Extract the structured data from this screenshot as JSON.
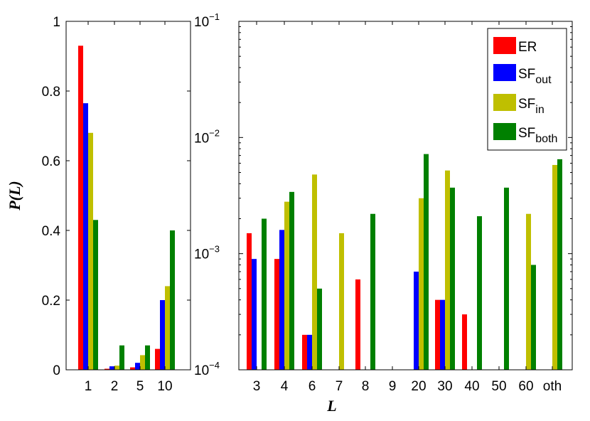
{
  "chart_data": [
    {
      "type": "bar",
      "panel": "left",
      "scale": "linear",
      "ylabel": "P(L)",
      "ylim": [
        0,
        1
      ],
      "yticks": [
        0,
        0.2,
        0.4,
        0.6,
        0.8,
        1
      ],
      "ytick_labels": [
        "0",
        "0.2",
        "0.4",
        "0.6",
        "0.8",
        "1"
      ],
      "categories": [
        "1",
        "2",
        "5",
        "10"
      ],
      "series": [
        {
          "name": "ER",
          "color": "#ff0000",
          "values": [
            0.93,
            0.003,
            0.007,
            0.06
          ]
        },
        {
          "name": "SF_out",
          "color": "#0000ff",
          "values": [
            0.765,
            0.01,
            0.02,
            0.2
          ]
        },
        {
          "name": "SF_in",
          "color": "#bfbf00",
          "values": [
            0.68,
            0.012,
            0.042,
            0.24
          ]
        },
        {
          "name": "SF_both",
          "color": "#008000",
          "values": [
            0.43,
            0.07,
            0.07,
            0.4
          ]
        }
      ]
    },
    {
      "type": "bar",
      "panel": "right",
      "scale": "log",
      "xlabel": "L",
      "ylim": [
        0.0001,
        0.1
      ],
      "yticks": [
        0.0001,
        0.001,
        0.01,
        0.1
      ],
      "ytick_labels": [
        {
          "base": "10",
          "exp": "−4"
        },
        {
          "base": "10",
          "exp": "−3"
        },
        {
          "base": "10",
          "exp": "−2"
        },
        {
          "base": "10",
          "exp": "−1"
        }
      ],
      "categories": [
        "3",
        "4",
        "6",
        "7",
        "8",
        "9",
        "20",
        "30",
        "40",
        "50",
        "60",
        "oth"
      ],
      "series": [
        {
          "name": "ER",
          "color": "#ff0000",
          "values": [
            0.0015,
            0.0009,
            0.0002,
            null,
            0.0006,
            null,
            null,
            0.0004,
            0.0003,
            null,
            null,
            null
          ]
        },
        {
          "name": "SF_out",
          "color": "#0000ff",
          "values": [
            0.0009,
            0.0016,
            0.0002,
            null,
            null,
            null,
            0.0007,
            0.0004,
            null,
            null,
            null,
            null
          ]
        },
        {
          "name": "SF_in",
          "color": "#bfbf00",
          "values": [
            null,
            0.0028,
            0.0048,
            0.0015,
            null,
            null,
            0.003,
            0.0052,
            null,
            null,
            0.0022,
            0.0058
          ]
        },
        {
          "name": "SF_both",
          "color": "#008000",
          "values": [
            0.002,
            0.0034,
            0.0005,
            null,
            0.0022,
            null,
            0.0072,
            0.0037,
            0.0021,
            0.0037,
            0.0008,
            0.0065
          ]
        }
      ],
      "legend": {
        "placement": "top-right",
        "entries": [
          {
            "base": "ER",
            "sub": "",
            "color": "#ff0000"
          },
          {
            "base": "SF",
            "sub": "out",
            "color": "#0000ff"
          },
          {
            "base": "SF",
            "sub": "in",
            "color": "#bfbf00"
          },
          {
            "base": "SF",
            "sub": "both",
            "color": "#008000"
          }
        ]
      }
    }
  ]
}
